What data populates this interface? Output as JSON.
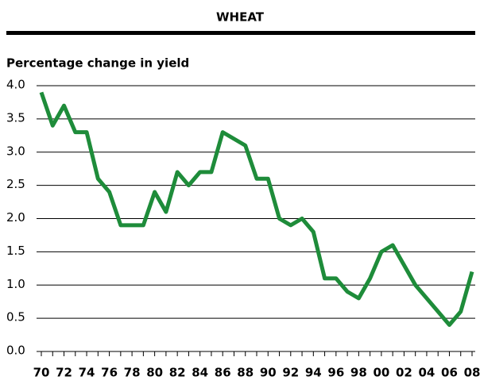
{
  "chart_data": {
    "type": "line",
    "title": "WHEAT",
    "subtitle": "Percentage change in yield",
    "categories": [
      "70",
      null,
      "72",
      null,
      "74",
      null,
      "76",
      null,
      "78",
      null,
      "80",
      null,
      "82",
      null,
      "84",
      null,
      "86",
      null,
      "88",
      null,
      "90",
      null,
      "92",
      null,
      "94",
      null,
      "96",
      null,
      "98",
      null,
      "00",
      null,
      "02",
      null,
      "04",
      null,
      "06",
      null,
      "08"
    ],
    "series": [
      {
        "name": "Wheat",
        "color": "#1e8c3a",
        "values": [
          3.9,
          3.4,
          3.7,
          3.3,
          3.3,
          2.6,
          2.4,
          1.9,
          1.9,
          1.9,
          2.4,
          2.1,
          2.7,
          2.5,
          2.7,
          2.7,
          3.3,
          3.2,
          3.1,
          2.6,
          2.6,
          2.0,
          1.9,
          2.0,
          1.8,
          1.1,
          1.1,
          0.9,
          0.8,
          1.1,
          1.5,
          1.6,
          1.3,
          1.0,
          0.8,
          0.6,
          0.4,
          0.6,
          1.2
        ]
      }
    ],
    "ylim": [
      0,
      4
    ],
    "yticks": [
      {
        "value": 0,
        "label": "0.0"
      },
      0.5,
      {
        "value": 1,
        "label": "1.0"
      },
      1.5,
      {
        "value": 2,
        "label": "2.0"
      },
      2.5,
      {
        "value": 3,
        "label": "3.0"
      },
      3.5,
      {
        "value": 4,
        "label": "4.0"
      }
    ],
    "grid": true
  }
}
